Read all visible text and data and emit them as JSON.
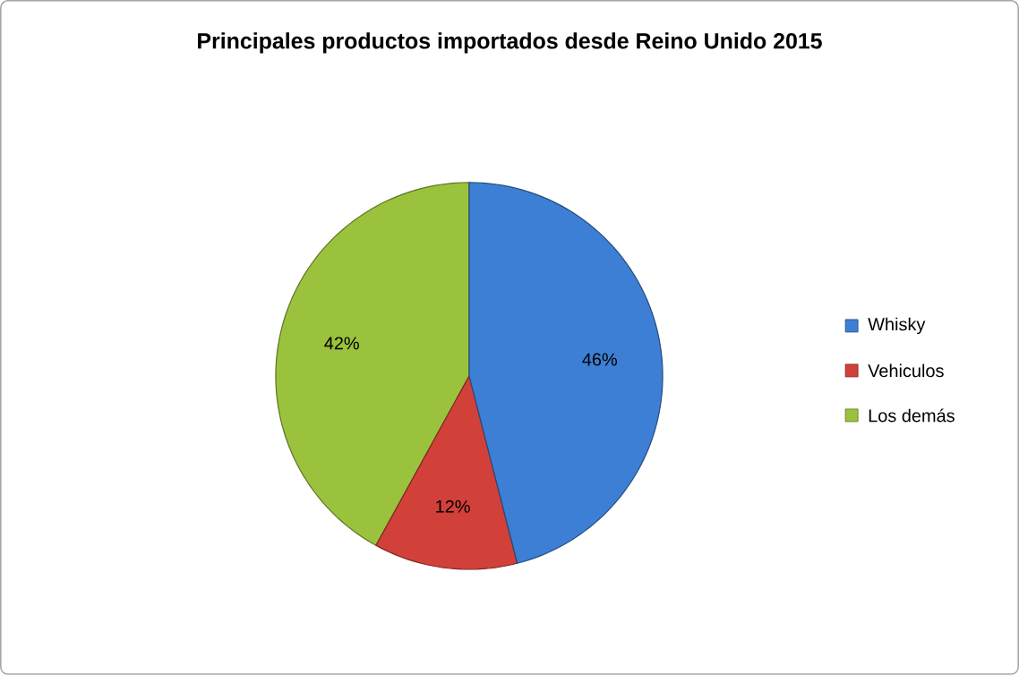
{
  "chart_data": {
    "type": "pie",
    "title": "Principales productos importados desde Reino Unido 2015",
    "categories": [
      "Whisky",
      "Vehiculos",
      "Los demás"
    ],
    "values": [
      46,
      12,
      42
    ],
    "colors": [
      "#3d7fd4",
      "#d2403a",
      "#9bc23c"
    ],
    "value_labels": [
      "46%",
      "12%",
      "42%"
    ],
    "legend": "right"
  }
}
